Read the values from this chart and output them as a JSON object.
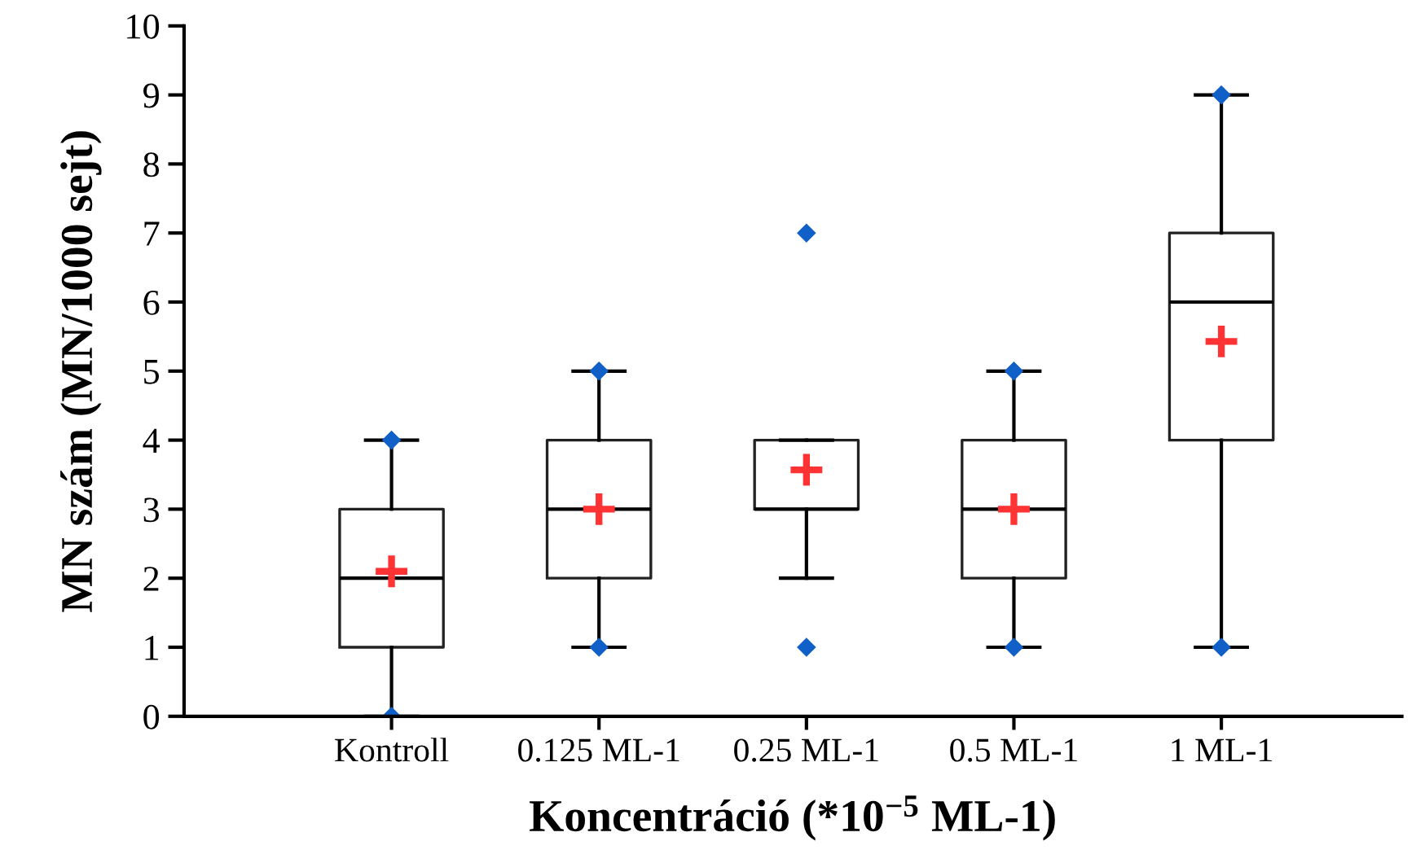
{
  "chart_data": {
    "type": "box",
    "xlabel": "Koncentráció (*10$^{−5}$ ML-1)",
    "ylabel": "MN szám (MN/1000 sejt)",
    "categories": [
      "Kontroll",
      "0.125 ML-1",
      "0.25 ML-1",
      "0.5 ML-1",
      "1 ML-1"
    ],
    "boxes": [
      {
        "low": 0,
        "q1": 1,
        "median": 2,
        "q3": 3,
        "high": 4,
        "mean": 2.1,
        "outliers": [
          0,
          4
        ]
      },
      {
        "low": 1,
        "q1": 2,
        "median": 3,
        "q3": 4,
        "high": 5,
        "mean": 3,
        "outliers": [
          1,
          5
        ]
      },
      {
        "low": 2,
        "q1": 3,
        "median": 3,
        "q3": 4,
        "high": 4,
        "mean": 3.57,
        "outliers": [
          1,
          7
        ]
      },
      {
        "low": 1,
        "q1": 2,
        "median": 3,
        "q3": 4,
        "high": 5,
        "mean": 3,
        "outliers": [
          1,
          5
        ]
      },
      {
        "low": 1,
        "q1": 4,
        "median": 6,
        "q3": 7,
        "high": 9,
        "mean": 5.43,
        "outliers": [
          1,
          9
        ]
      }
    ],
    "ylim": [
      0,
      10
    ],
    "yticks": [
      0,
      1,
      2,
      3,
      4,
      5,
      6,
      7,
      8,
      9,
      10
    ],
    "grid": false,
    "legend": false
  }
}
